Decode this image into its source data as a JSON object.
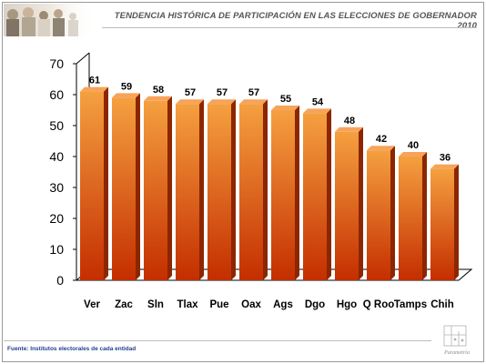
{
  "header": {
    "title": "TENDENCIA HISTÓRICA DE PARTICIPACIÓN EN LAS ELECCIONES DE GOBERNADOR 2010"
  },
  "footer": {
    "source": "Fuente: Institutos electorales de cada entidad",
    "logo_text": "Parametría"
  },
  "colors": {
    "bar_top": "#f5a040",
    "bar_bottom": "#c42e00",
    "bar_side": "#8c2600",
    "bar_cap": "#f7a45a"
  },
  "chart_data": {
    "type": "bar",
    "title": "TENDENCIA HISTÓRICA DE PARTICIPACIÓN EN LAS ELECCIONES DE GOBERNADOR 2010",
    "categories": [
      "Ver",
      "Zac",
      "Sln",
      "Tlax",
      "Pue",
      "Oax",
      "Ags",
      "Dgo",
      "Hgo",
      "Q Roo",
      "Tamps",
      "Chih"
    ],
    "values": [
      61,
      59,
      58,
      57,
      57,
      57,
      55,
      54,
      48,
      42,
      40,
      36
    ],
    "ylim": [
      0,
      70
    ],
    "yticks": [
      0,
      10,
      20,
      30,
      40,
      50,
      60,
      70
    ],
    "grid": false,
    "legend": "none",
    "data_labels": true
  }
}
